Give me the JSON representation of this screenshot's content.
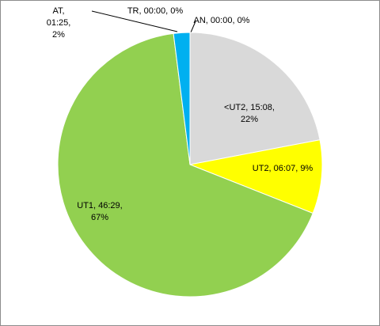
{
  "chart_data": {
    "type": "pie",
    "values": [
      22,
      9,
      67,
      2,
      0,
      0
    ],
    "value_labels": [
      "<UT2, 15:08, 22%",
      "UT2, 06:07, 9%",
      "UT1, 46:29, 67%",
      "AT, 01:25, 2%",
      "TR, 00:00, 0%",
      "AN, 00:00, 0%"
    ],
    "colors": [
      "#d9d9d9",
      "#ffff00",
      "#92d050",
      "#00b0f0",
      "#7f7f7f",
      "#4f81bd"
    ],
    "start_angle": 0,
    "direction": "clockwise"
  }
}
